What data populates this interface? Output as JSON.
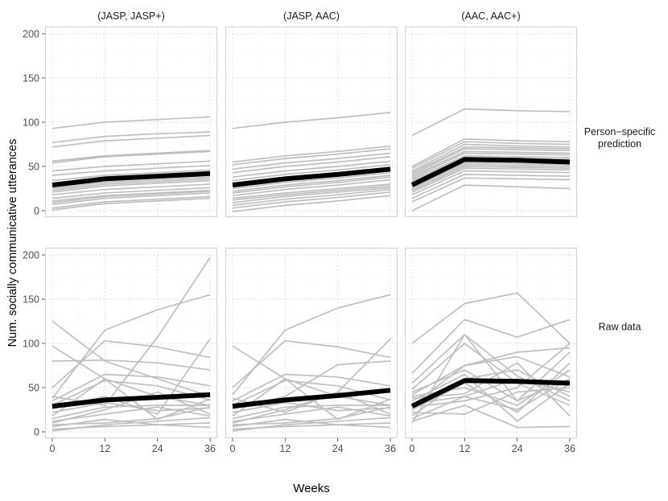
{
  "chart_data": {
    "type": "line",
    "title": "",
    "xlabel": "Weeks",
    "ylabel": "Num. socially communicative utterances",
    "x": [
      0,
      12,
      24,
      36
    ],
    "x_ticks": [
      "0",
      "12",
      "24",
      "36"
    ],
    "y_ticks": [
      "0",
      "50",
      "100",
      "150",
      "200"
    ],
    "xlim": [
      0,
      36
    ],
    "ylim": [
      0,
      200
    ],
    "grid": true,
    "columns": [
      "(JASP, JASP+)",
      "(JASP, AAC)",
      "(AAC, AAC+)"
    ],
    "rows": [
      "Person−specific prediction",
      "Raw data"
    ],
    "row_label_lines": [
      [
        "Person−specific",
        "prediction"
      ],
      [
        "Raw data"
      ]
    ],
    "colors": {
      "individual": "#bfbfbf",
      "mean": "#000000",
      "grid": "#d2d2d2",
      "panel_border": "#d0d0d0"
    },
    "panels": [
      {
        "row": 0,
        "col": 0,
        "mean": [
          29,
          36,
          39,
          42
        ],
        "individual": [
          [
            93,
            100,
            103,
            106
          ],
          [
            77,
            84,
            87,
            89
          ],
          [
            72,
            79,
            82,
            85
          ],
          [
            56,
            62,
            65,
            68
          ],
          [
            54,
            61,
            64,
            67
          ],
          [
            45,
            50,
            53,
            56
          ],
          [
            40,
            45,
            48,
            51
          ],
          [
            34,
            40,
            43,
            46
          ],
          [
            31,
            37,
            40,
            43
          ],
          [
            29,
            36,
            39,
            42
          ],
          [
            27,
            34,
            37,
            40
          ],
          [
            25,
            32,
            35,
            38
          ],
          [
            23,
            30,
            33,
            36
          ],
          [
            21,
            28,
            31,
            34
          ],
          [
            18,
            24,
            27,
            30
          ],
          [
            14,
            20,
            23,
            26
          ],
          [
            11,
            17,
            20,
            23
          ],
          [
            9,
            16,
            19,
            22
          ],
          [
            7,
            14,
            17,
            20
          ],
          [
            3,
            10,
            13,
            16
          ],
          [
            1,
            8,
            11,
            14
          ]
        ]
      },
      {
        "row": 0,
        "col": 1,
        "mean": [
          29,
          36,
          41,
          47
        ],
        "individual": [
          [
            93,
            100,
            105,
            111
          ],
          [
            55,
            62,
            67,
            73
          ],
          [
            52,
            59,
            64,
            70
          ],
          [
            47,
            54,
            59,
            65
          ],
          [
            43,
            50,
            55,
            61
          ],
          [
            38,
            45,
            50,
            56
          ],
          [
            34,
            41,
            46,
            52
          ],
          [
            31,
            38,
            43,
            49
          ],
          [
            29,
            36,
            41,
            47
          ],
          [
            27,
            34,
            39,
            45
          ],
          [
            25,
            32,
            37,
            43
          ],
          [
            22,
            29,
            34,
            40
          ],
          [
            20,
            27,
            32,
            38
          ],
          [
            17,
            24,
            29,
            35
          ],
          [
            14,
            20,
            25,
            30
          ],
          [
            12,
            18,
            23,
            28
          ],
          [
            9,
            16,
            21,
            26
          ],
          [
            6,
            13,
            18,
            24
          ],
          [
            3,
            10,
            15,
            21
          ],
          [
            -1,
            6,
            11,
            17
          ]
        ]
      },
      {
        "row": 0,
        "col": 2,
        "mean": [
          29,
          58,
          57,
          55
        ],
        "individual": [
          [
            85,
            115,
            113,
            112
          ],
          [
            50,
            81,
            79,
            78
          ],
          [
            48,
            78,
            76,
            75
          ],
          [
            45,
            75,
            73,
            72
          ],
          [
            43,
            72,
            71,
            70
          ],
          [
            41,
            70,
            69,
            68
          ],
          [
            39,
            67,
            66,
            65
          ],
          [
            37,
            65,
            64,
            63
          ],
          [
            35,
            62,
            61,
            60
          ],
          [
            33,
            60,
            59,
            58
          ],
          [
            31,
            58,
            57,
            56
          ],
          [
            29,
            56,
            55,
            54
          ],
          [
            27,
            54,
            53,
            52
          ],
          [
            25,
            52,
            51,
            50
          ],
          [
            23,
            50,
            49,
            48
          ],
          [
            21,
            48,
            47,
            46
          ],
          [
            18,
            45,
            44,
            43
          ],
          [
            14,
            41,
            40,
            39
          ],
          [
            10,
            37,
            36,
            35
          ],
          [
            0,
            29,
            27,
            25
          ]
        ]
      },
      {
        "row": 1,
        "col": 0,
        "mean": [
          29,
          36,
          39,
          42
        ],
        "individual": [
          [
            125,
            80,
            60,
            40
          ],
          [
            97,
            60,
            40,
            30
          ],
          [
            80,
            81,
            78,
            70
          ],
          [
            50,
            103,
            96,
            84
          ],
          [
            40,
            30,
            107,
            197
          ],
          [
            38,
            115,
            138,
            155
          ],
          [
            35,
            65,
            62,
            52
          ],
          [
            30,
            58,
            52,
            36
          ],
          [
            26,
            40,
            20,
            105
          ],
          [
            22,
            33,
            24,
            27
          ],
          [
            18,
            60,
            14,
            37
          ],
          [
            15,
            28,
            30,
            30
          ],
          [
            12,
            20,
            28,
            18
          ],
          [
            10,
            25,
            45,
            20
          ],
          [
            8,
            10,
            15,
            28
          ],
          [
            6,
            14,
            8,
            10
          ],
          [
            3,
            6,
            8,
            5
          ],
          [
            1,
            8,
            12,
            16
          ]
        ]
      },
      {
        "row": 1,
        "col": 1,
        "mean": [
          29,
          36,
          41,
          47
        ],
        "individual": [
          [
            97,
            60,
            40,
            30
          ],
          [
            50,
            103,
            96,
            84
          ],
          [
            42,
            115,
            140,
            155
          ],
          [
            38,
            22,
            45,
            105
          ],
          [
            35,
            65,
            62,
            52
          ],
          [
            30,
            58,
            52,
            36
          ],
          [
            26,
            40,
            76,
            80
          ],
          [
            22,
            33,
            24,
            27
          ],
          [
            18,
            60,
            14,
            37
          ],
          [
            15,
            28,
            30,
            30
          ],
          [
            12,
            20,
            28,
            18
          ],
          [
            10,
            25,
            45,
            20
          ],
          [
            8,
            10,
            15,
            28
          ],
          [
            6,
            14,
            8,
            10
          ],
          [
            3,
            6,
            8,
            5
          ],
          [
            1,
            8,
            12,
            16
          ]
        ]
      },
      {
        "row": 1,
        "col": 2,
        "mean": [
          29,
          58,
          57,
          55
        ],
        "individual": [
          [
            100,
            145,
            157,
            100
          ],
          [
            66,
            127,
            107,
            127
          ],
          [
            55,
            110,
            63,
            35
          ],
          [
            48,
            100,
            55,
            30
          ],
          [
            45,
            70,
            35,
            60
          ],
          [
            42,
            75,
            90,
            95
          ],
          [
            40,
            50,
            30,
            70
          ],
          [
            38,
            43,
            78,
            18
          ],
          [
            35,
            65,
            12,
            55
          ],
          [
            32,
            40,
            60,
            45
          ],
          [
            30,
            75,
            85,
            62
          ],
          [
            28,
            35,
            50,
            100
          ],
          [
            25,
            55,
            22,
            78
          ],
          [
            22,
            20,
            45,
            50
          ],
          [
            18,
            60,
            70,
            40
          ],
          [
            15,
            40,
            25,
            60
          ],
          [
            12,
            30,
            5,
            6
          ],
          [
            10,
            110,
            35,
            90
          ]
        ]
      }
    ]
  }
}
